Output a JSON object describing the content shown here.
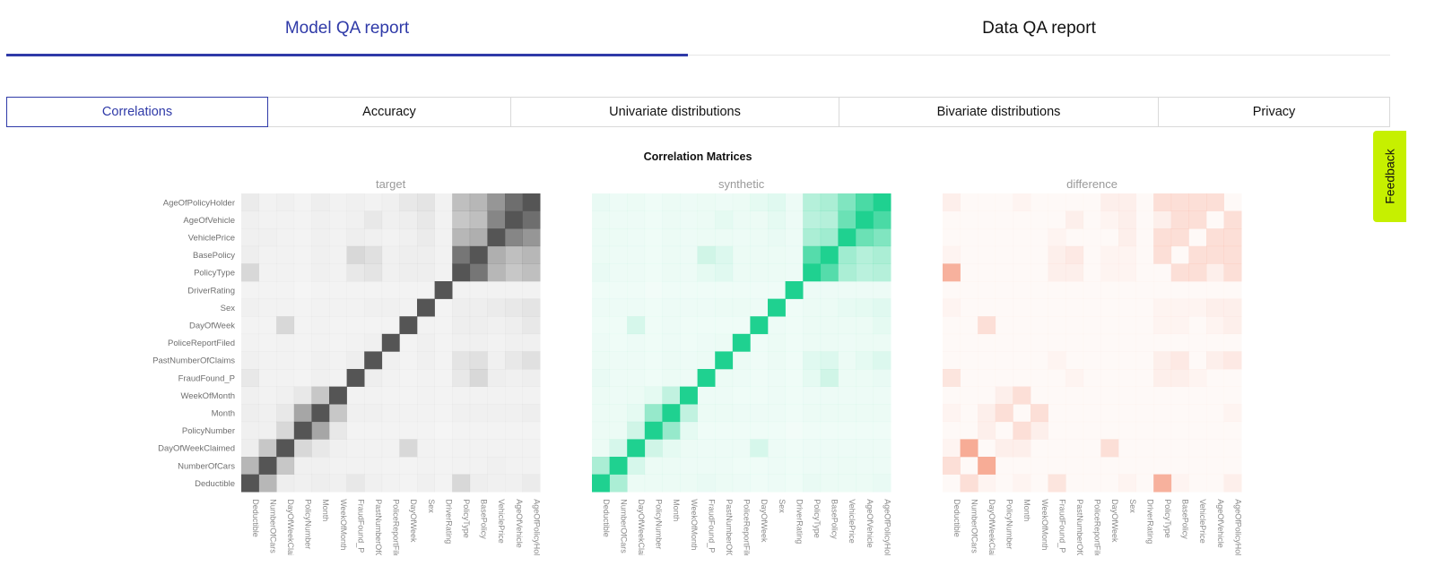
{
  "top_tabs": {
    "model_label": "Model QA report",
    "data_label": "Data QA report",
    "active": "model"
  },
  "sub_tabs": [
    {
      "label": "Correlations",
      "active": true
    },
    {
      "label": "Accuracy",
      "active": false
    },
    {
      "label": "Univariate distributions",
      "active": false
    },
    {
      "label": "Bivariate distributions",
      "active": false
    },
    {
      "label": "Privacy",
      "active": false
    }
  ],
  "section_title": "Correlation Matrices",
  "feedback_label": "Feedback",
  "colors": {
    "accent": "#2f3aa8",
    "target_cell": "#555555",
    "synthetic_cell": "#1fd190",
    "difference_cell": "#f0663f",
    "feedback_bg": "#c6f000"
  },
  "chart_data": {
    "type": "heatmap",
    "panels": [
      "target",
      "synthetic",
      "difference"
    ],
    "rows": [
      "AgeOfPolicyHolder",
      "AgeOfVehicle",
      "VehiclePrice",
      "BasePolicy",
      "PolicyType",
      "DriverRating",
      "Sex",
      "DayOfWeek",
      "PoliceReportFiled",
      "PastNumberOfClaims",
      "FraudFound_P",
      "WeekOfMonth",
      "Month",
      "PolicyNumber",
      "DayOfWeekClaimed",
      "NumberOfCars",
      "Deductible"
    ],
    "columns": [
      "Deductible",
      "NumberOfCars",
      "DayOfWeekClaimed",
      "PolicyNumber",
      "Month",
      "WeekOfMonth",
      "FraudFound_P",
      "PastNumberOfClaims",
      "PoliceReportFiled",
      "DayOfWeek",
      "Sex",
      "DriverRating",
      "PolicyType",
      "BasePolicy",
      "VehiclePrice",
      "AgeOfVehicle",
      "AgeOfPolicyHolder"
    ],
    "value_range": [
      0,
      1
    ],
    "target_correlations": [
      [
        0.08,
        0.04,
        0.05,
        0.03,
        0.06,
        0.04,
        0.05,
        0.04,
        0.05,
        0.1,
        0.12,
        0.04,
        0.35,
        0.4,
        0.6,
        0.85,
        1.0
      ],
      [
        0.05,
        0.04,
        0.04,
        0.03,
        0.05,
        0.04,
        0.05,
        0.1,
        0.05,
        0.06,
        0.1,
        0.04,
        0.3,
        0.35,
        0.7,
        1.0,
        0.85
      ],
      [
        0.05,
        0.05,
        0.04,
        0.03,
        0.05,
        0.04,
        0.06,
        0.05,
        0.04,
        0.05,
        0.08,
        0.04,
        0.4,
        0.45,
        1.0,
        0.7,
        0.6
      ],
      [
        0.06,
        0.04,
        0.04,
        0.03,
        0.05,
        0.04,
        0.2,
        0.15,
        0.05,
        0.06,
        0.06,
        0.04,
        0.8,
        1.0,
        0.45,
        0.35,
        0.4
      ],
      [
        0.2,
        0.04,
        0.04,
        0.03,
        0.05,
        0.04,
        0.1,
        0.12,
        0.05,
        0.06,
        0.06,
        0.04,
        1.0,
        0.8,
        0.4,
        0.3,
        0.35
      ],
      [
        0.03,
        0.03,
        0.03,
        0.02,
        0.03,
        0.03,
        0.03,
        0.03,
        0.03,
        0.03,
        0.03,
        1.0,
        0.04,
        0.04,
        0.04,
        0.04,
        0.04
      ],
      [
        0.05,
        0.04,
        0.04,
        0.03,
        0.04,
        0.04,
        0.04,
        0.05,
        0.05,
        0.04,
        1.0,
        0.03,
        0.06,
        0.06,
        0.08,
        0.1,
        0.12
      ],
      [
        0.03,
        0.03,
        0.2,
        0.03,
        0.04,
        0.03,
        0.03,
        0.03,
        0.03,
        1.0,
        0.04,
        0.03,
        0.06,
        0.06,
        0.05,
        0.06,
        0.1
      ],
      [
        0.04,
        0.03,
        0.04,
        0.03,
        0.04,
        0.03,
        0.04,
        0.05,
        1.0,
        0.03,
        0.05,
        0.03,
        0.05,
        0.05,
        0.04,
        0.05,
        0.05
      ],
      [
        0.05,
        0.04,
        0.04,
        0.03,
        0.05,
        0.04,
        0.06,
        1.0,
        0.05,
        0.03,
        0.05,
        0.03,
        0.12,
        0.15,
        0.05,
        0.1,
        0.15
      ],
      [
        0.1,
        0.04,
        0.04,
        0.03,
        0.05,
        0.04,
        1.0,
        0.06,
        0.04,
        0.03,
        0.04,
        0.03,
        0.1,
        0.2,
        0.06,
        0.05,
        0.06
      ],
      [
        0.05,
        0.04,
        0.05,
        0.1,
        0.3,
        1.0,
        0.04,
        0.04,
        0.03,
        0.03,
        0.04,
        0.03,
        0.04,
        0.04,
        0.04,
        0.04,
        0.04
      ],
      [
        0.06,
        0.05,
        0.1,
        0.5,
        1.0,
        0.3,
        0.05,
        0.05,
        0.04,
        0.04,
        0.04,
        0.03,
        0.05,
        0.05,
        0.05,
        0.05,
        0.06
      ],
      [
        0.05,
        0.05,
        0.2,
        1.0,
        0.5,
        0.1,
        0.03,
        0.03,
        0.03,
        0.03,
        0.03,
        0.02,
        0.03,
        0.03,
        0.03,
        0.03,
        0.03
      ],
      [
        0.06,
        0.3,
        1.0,
        0.2,
        0.1,
        0.05,
        0.04,
        0.04,
        0.04,
        0.2,
        0.04,
        0.03,
        0.04,
        0.04,
        0.04,
        0.04,
        0.04
      ],
      [
        0.4,
        1.0,
        0.3,
        0.05,
        0.05,
        0.04,
        0.04,
        0.04,
        0.03,
        0.03,
        0.04,
        0.03,
        0.04,
        0.04,
        0.05,
        0.04,
        0.04
      ],
      [
        1.0,
        0.4,
        0.06,
        0.05,
        0.06,
        0.05,
        0.1,
        0.05,
        0.04,
        0.03,
        0.05,
        0.03,
        0.2,
        0.06,
        0.05,
        0.05,
        0.08
      ]
    ],
    "synthetic_correlations": [
      [
        0.06,
        0.04,
        0.05,
        0.03,
        0.05,
        0.04,
        0.05,
        0.04,
        0.05,
        0.08,
        0.1,
        0.04,
        0.3,
        0.35,
        0.55,
        0.8,
        1.0
      ],
      [
        0.05,
        0.04,
        0.04,
        0.03,
        0.05,
        0.04,
        0.05,
        0.08,
        0.05,
        0.05,
        0.08,
        0.04,
        0.28,
        0.3,
        0.65,
        1.0,
        0.8
      ],
      [
        0.05,
        0.05,
        0.04,
        0.03,
        0.05,
        0.04,
        0.05,
        0.05,
        0.04,
        0.05,
        0.06,
        0.04,
        0.35,
        0.4,
        1.0,
        0.65,
        0.55
      ],
      [
        0.05,
        0.04,
        0.04,
        0.03,
        0.05,
        0.04,
        0.18,
        0.12,
        0.05,
        0.05,
        0.05,
        0.04,
        0.75,
        1.0,
        0.4,
        0.3,
        0.35
      ],
      [
        0.06,
        0.04,
        0.04,
        0.03,
        0.05,
        0.04,
        0.08,
        0.1,
        0.05,
        0.05,
        0.05,
        0.04,
        1.0,
        0.75,
        0.35,
        0.28,
        0.3
      ],
      [
        0.03,
        0.03,
        0.03,
        0.02,
        0.03,
        0.03,
        0.03,
        0.03,
        0.03,
        0.03,
        0.03,
        1.0,
        0.04,
        0.04,
        0.04,
        0.04,
        0.04
      ],
      [
        0.04,
        0.04,
        0.04,
        0.03,
        0.04,
        0.04,
        0.04,
        0.05,
        0.05,
        0.04,
        1.0,
        0.03,
        0.05,
        0.05,
        0.07,
        0.08,
        0.1
      ],
      [
        0.03,
        0.03,
        0.15,
        0.03,
        0.04,
        0.03,
        0.03,
        0.03,
        0.03,
        1.0,
        0.04,
        0.03,
        0.05,
        0.05,
        0.05,
        0.05,
        0.08
      ],
      [
        0.04,
        0.03,
        0.04,
        0.03,
        0.04,
        0.03,
        0.04,
        0.05,
        1.0,
        0.03,
        0.05,
        0.03,
        0.05,
        0.05,
        0.04,
        0.05,
        0.05
      ],
      [
        0.05,
        0.04,
        0.04,
        0.03,
        0.05,
        0.04,
        0.05,
        1.0,
        0.05,
        0.03,
        0.05,
        0.03,
        0.1,
        0.12,
        0.05,
        0.08,
        0.12
      ],
      [
        0.06,
        0.04,
        0.04,
        0.03,
        0.05,
        0.04,
        1.0,
        0.05,
        0.04,
        0.03,
        0.04,
        0.03,
        0.08,
        0.18,
        0.05,
        0.05,
        0.06
      ],
      [
        0.05,
        0.04,
        0.05,
        0.08,
        0.25,
        1.0,
        0.04,
        0.04,
        0.03,
        0.03,
        0.04,
        0.03,
        0.04,
        0.04,
        0.04,
        0.04,
        0.04
      ],
      [
        0.05,
        0.05,
        0.08,
        0.45,
        1.0,
        0.25,
        0.05,
        0.05,
        0.04,
        0.04,
        0.04,
        0.03,
        0.05,
        0.05,
        0.05,
        0.05,
        0.05
      ],
      [
        0.05,
        0.05,
        0.18,
        1.0,
        0.45,
        0.08,
        0.03,
        0.03,
        0.03,
        0.03,
        0.03,
        0.02,
        0.03,
        0.03,
        0.03,
        0.03,
        0.03
      ],
      [
        0.05,
        0.15,
        1.0,
        0.18,
        0.08,
        0.05,
        0.04,
        0.04,
        0.04,
        0.15,
        0.04,
        0.03,
        0.04,
        0.04,
        0.04,
        0.04,
        0.04
      ],
      [
        0.35,
        1.0,
        0.15,
        0.05,
        0.05,
        0.04,
        0.04,
        0.04,
        0.03,
        0.03,
        0.04,
        0.03,
        0.04,
        0.04,
        0.05,
        0.04,
        0.04
      ],
      [
        1.0,
        0.35,
        0.05,
        0.05,
        0.05,
        0.05,
        0.06,
        0.05,
        0.04,
        0.03,
        0.04,
        0.03,
        0.06,
        0.05,
        0.05,
        0.05,
        0.06
      ]
    ],
    "difference_values": [
      [
        0.02,
        0.0,
        0.0,
        0.0,
        0.01,
        0.0,
        0.0,
        0.0,
        0.0,
        0.02,
        0.02,
        0.0,
        0.05,
        0.05,
        0.05,
        0.05,
        0.0
      ],
      [
        0.0,
        0.0,
        0.0,
        0.0,
        0.0,
        0.0,
        0.0,
        0.02,
        0.0,
        0.01,
        0.02,
        0.0,
        0.02,
        0.05,
        0.05,
        0.0,
        0.05
      ],
      [
        0.0,
        0.0,
        0.0,
        0.0,
        0.0,
        0.0,
        0.01,
        0.0,
        0.0,
        0.0,
        0.02,
        0.0,
        0.05,
        0.05,
        0.0,
        0.05,
        0.05
      ],
      [
        0.01,
        0.0,
        0.0,
        0.0,
        0.0,
        0.0,
        0.02,
        0.03,
        0.0,
        0.01,
        0.01,
        0.0,
        0.05,
        0.0,
        0.05,
        0.05,
        0.05
      ],
      [
        0.14,
        0.0,
        0.0,
        0.0,
        0.0,
        0.0,
        0.02,
        0.02,
        0.0,
        0.01,
        0.01,
        0.0,
        0.0,
        0.05,
        0.05,
        0.02,
        0.05
      ],
      [
        0.0,
        0.0,
        0.0,
        0.0,
        0.0,
        0.0,
        0.0,
        0.0,
        0.0,
        0.0,
        0.0,
        0.0,
        0.0,
        0.0,
        0.0,
        0.0,
        0.0
      ],
      [
        0.01,
        0.0,
        0.0,
        0.0,
        0.0,
        0.0,
        0.0,
        0.0,
        0.0,
        0.0,
        0.0,
        0.0,
        0.01,
        0.01,
        0.01,
        0.02,
        0.02
      ],
      [
        0.0,
        0.0,
        0.05,
        0.0,
        0.0,
        0.0,
        0.0,
        0.0,
        0.0,
        0.0,
        0.0,
        0.0,
        0.01,
        0.01,
        0.0,
        0.01,
        0.02
      ],
      [
        0.0,
        0.0,
        0.0,
        0.0,
        0.0,
        0.0,
        0.0,
        0.0,
        0.0,
        0.0,
        0.0,
        0.0,
        0.0,
        0.0,
        0.0,
        0.0,
        0.0
      ],
      [
        0.0,
        0.0,
        0.0,
        0.0,
        0.0,
        0.0,
        0.01,
        0.0,
        0.0,
        0.0,
        0.0,
        0.0,
        0.02,
        0.03,
        0.0,
        0.02,
        0.03
      ],
      [
        0.04,
        0.0,
        0.0,
        0.0,
        0.0,
        0.0,
        0.0,
        0.01,
        0.0,
        0.0,
        0.0,
        0.0,
        0.02,
        0.02,
        0.01,
        0.0,
        0.0
      ],
      [
        0.0,
        0.0,
        0.0,
        0.02,
        0.05,
        0.0,
        0.0,
        0.0,
        0.0,
        0.0,
        0.0,
        0.0,
        0.0,
        0.0,
        0.0,
        0.0,
        0.0
      ],
      [
        0.01,
        0.0,
        0.02,
        0.05,
        0.0,
        0.05,
        0.0,
        0.0,
        0.0,
        0.0,
        0.0,
        0.0,
        0.0,
        0.0,
        0.0,
        0.0,
        0.01
      ],
      [
        0.0,
        0.0,
        0.02,
        0.0,
        0.05,
        0.02,
        0.0,
        0.0,
        0.0,
        0.0,
        0.0,
        0.0,
        0.0,
        0.0,
        0.0,
        0.0,
        0.0
      ],
      [
        0.01,
        0.15,
        0.0,
        0.02,
        0.02,
        0.0,
        0.0,
        0.0,
        0.0,
        0.05,
        0.0,
        0.0,
        0.0,
        0.0,
        0.0,
        0.0,
        0.0
      ],
      [
        0.05,
        0.0,
        0.15,
        0.0,
        0.0,
        0.0,
        0.0,
        0.0,
        0.0,
        0.0,
        0.0,
        0.0,
        0.0,
        0.0,
        0.0,
        0.0,
        0.0
      ],
      [
        0.0,
        0.05,
        0.01,
        0.0,
        0.01,
        0.0,
        0.04,
        0.0,
        0.0,
        0.0,
        0.01,
        0.0,
        0.14,
        0.01,
        0.0,
        0.0,
        0.02
      ]
    ]
  }
}
